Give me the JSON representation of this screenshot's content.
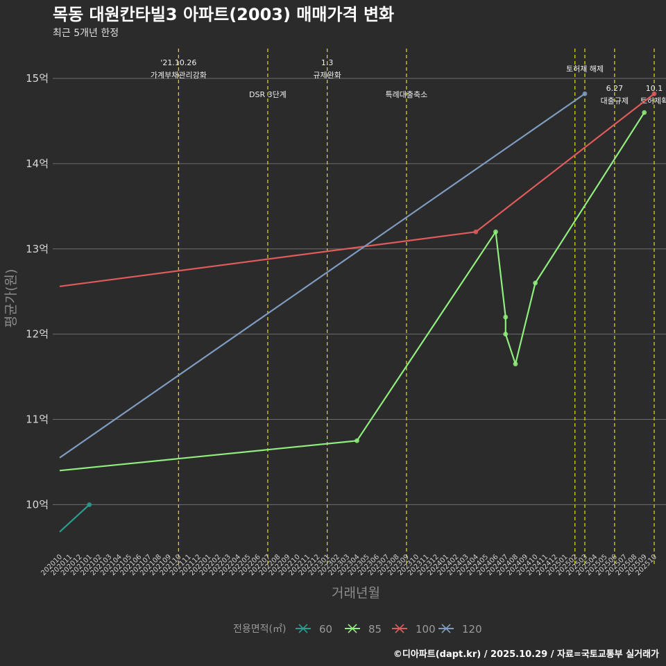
{
  "chart_data": {
    "type": "line",
    "title": "목동 대원칸타빌3 아파트(2003) 매매가격 변화",
    "subtitle": "최근 5개년 한정",
    "xlabel": "거래년월",
    "ylabel": "평균가(원)",
    "caption": "©디아파트(dapt.kr) / 2025.10.29 / 자료=국토교통부 실거래가",
    "legend_title": "전용면적(㎡)",
    "legend_position": "bottom",
    "grid": true,
    "ylim": [
      9.45,
      15.35
    ],
    "y_ticks": [
      10,
      11,
      12,
      13,
      14,
      15
    ],
    "y_tick_labels": [
      "10억",
      "11억",
      "12억",
      "13억",
      "14억",
      "15억"
    ],
    "x_start": "2020-10",
    "x_end": "2025-10",
    "x_ticks": [
      "202010",
      "202011",
      "202012",
      "202101",
      "202102",
      "202103",
      "202104",
      "202105",
      "202106",
      "202107",
      "202108",
      "202109",
      "202110",
      "202111",
      "202112",
      "202201",
      "202202",
      "202203",
      "202204",
      "202205",
      "202206",
      "202207",
      "202208",
      "202209",
      "202210",
      "202211",
      "202212",
      "202301",
      "202302",
      "202303",
      "202304",
      "202305",
      "202306",
      "202307",
      "202308",
      "202309",
      "202310",
      "202311",
      "202312",
      "202401",
      "202402",
      "202403",
      "202404",
      "202405",
      "202406",
      "202407",
      "202408",
      "202409",
      "202410",
      "202411",
      "202412",
      "202501",
      "202502",
      "202503",
      "202504",
      "202505",
      "202506",
      "202507",
      "202508",
      "202509",
      "202510"
    ],
    "series": [
      {
        "name": "60",
        "color": "#2a9d8f",
        "points": [
          [
            "2020-10",
            9.68
          ],
          [
            "2021-01",
            10.0
          ]
        ],
        "markers": [
          [
            "2021-01",
            10.0
          ]
        ]
      },
      {
        "name": "85",
        "color": "#90ee7e",
        "points": [
          [
            "2020-10",
            10.4
          ],
          [
            "2023-04",
            10.75
          ],
          [
            "2024-06",
            13.2
          ],
          [
            "2024-07",
            12.2
          ],
          [
            "2024-07",
            12.0
          ],
          [
            "2024-08",
            11.65
          ],
          [
            "2024-10",
            12.6
          ],
          [
            "2025-09",
            14.6
          ]
        ],
        "markers": [
          [
            "2023-04",
            10.75
          ],
          [
            "2024-06",
            13.2
          ],
          [
            "2024-07",
            12.2
          ],
          [
            "2024-07",
            12.0
          ],
          [
            "2024-08",
            11.65
          ],
          [
            "2024-10",
            12.6
          ],
          [
            "2025-09",
            14.6
          ]
        ]
      },
      {
        "name": "100",
        "color": "#e05b5b",
        "points": [
          [
            "2020-10",
            12.56
          ],
          [
            "2024-04",
            13.2
          ],
          [
            "2025-10",
            14.82
          ]
        ],
        "markers": [
          [
            "2024-04",
            13.2
          ],
          [
            "2025-10",
            14.82
          ]
        ]
      },
      {
        "name": "120",
        "color": "#7f9cc0",
        "points": [
          [
            "2020-10",
            10.55
          ],
          [
            "2025-03",
            14.82
          ]
        ],
        "markers": [
          [
            "2025-03",
            14.82
          ]
        ]
      }
    ],
    "events": [
      {
        "date": "2021-10",
        "lines": [
          "'21.10.26",
          "가계부채관리강화"
        ],
        "level": 1
      },
      {
        "date": "2022-07",
        "lines": [
          "DSR 3단계"
        ],
        "level": 2
      },
      {
        "date": "2023-01",
        "lines": [
          "1.3",
          "규제완화"
        ],
        "level": 1
      },
      {
        "date": "2023-09",
        "lines": [
          "특례대출축소"
        ],
        "level": 2
      },
      {
        "date": "2025-02",
        "lines": [],
        "level": 0
      },
      {
        "date": "2025-03",
        "lines": [
          "토허제 해제"
        ],
        "level": 1
      },
      {
        "date": "2025-06",
        "lines": [
          "6.27",
          "대출규제"
        ],
        "level": 2
      },
      {
        "date": "2025-10",
        "lines": [
          "10.1",
          "토허제확"
        ],
        "level": 2
      }
    ]
  }
}
